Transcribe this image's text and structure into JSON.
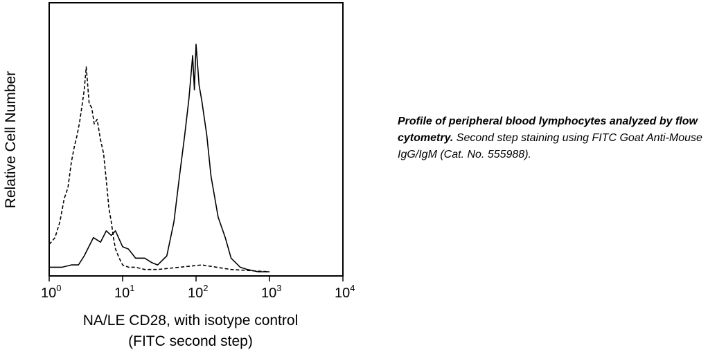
{
  "chart_data": {
    "type": "line",
    "title": "",
    "xlabel": "NA/LE CD28, with isotype control",
    "xlabel_line2": "(FITC second step)",
    "ylabel": "Relative Cell Number",
    "xscale": "log",
    "xlim": [
      1,
      10000
    ],
    "ylim": [
      0,
      100
    ],
    "grid": false,
    "xticks": [
      {
        "value": 1,
        "base": "10",
        "exp": "0"
      },
      {
        "value": 10,
        "base": "10",
        "exp": "1"
      },
      {
        "value": 100,
        "base": "10",
        "exp": "2"
      },
      {
        "value": 1000,
        "base": "10",
        "exp": "3"
      },
      {
        "value": 10000,
        "base": "10",
        "exp": "4"
      }
    ],
    "series": [
      {
        "style": "dashed",
        "x": [
          1.0,
          1.2,
          1.4,
          1.6,
          1.8,
          2.0,
          2.2,
          2.4,
          2.6,
          2.8,
          3.0,
          3.2,
          3.5,
          3.8,
          4.1,
          4.5,
          5.0,
          5.5,
          6.0,
          6.5,
          7.0,
          7.5,
          8.0,
          9.0,
          10.0,
          12.0,
          15.0,
          20.0,
          30.0,
          60.0,
          120.0,
          300.0,
          1000.0
        ],
        "y": [
          12,
          15,
          22,
          32,
          37,
          48,
          55,
          60,
          66,
          73,
          80,
          90,
          74,
          72,
          65,
          67,
          58,
          52,
          40,
          28,
          22,
          15,
          10,
          6,
          3,
          2,
          2,
          1,
          1,
          2,
          3,
          1,
          0
        ]
      },
      {
        "style": "solid",
        "x": [
          1.0,
          1.5,
          2.0,
          2.5,
          3.0,
          4.0,
          5.0,
          6.0,
          7.0,
          8.0,
          10.0,
          12.0,
          15.0,
          20.0,
          25.0,
          30.0,
          40.0,
          50.0,
          60.0,
          70.0,
          80.0,
          90.0,
          95.0,
          100.0,
          110.0,
          120.0,
          140.0,
          160.0,
          200.0,
          250.0,
          300.0,
          400.0,
          500.0,
          700.0,
          1000.0
        ],
        "y": [
          2,
          2,
          3,
          3,
          7,
          15,
          13,
          18,
          16,
          18,
          11,
          10,
          6,
          6,
          4,
          3,
          7,
          22,
          43,
          60,
          76,
          95,
          80,
          100,
          82,
          75,
          60,
          42,
          24,
          15,
          6,
          2,
          1,
          0,
          0
        ]
      }
    ]
  },
  "caption": {
    "bold": "Profile of peripheral blood lymphocytes analyzed by flow cytometry.",
    "text": " Second step staining using FITC Goat Anti-Mouse IgG/IgM (Cat. No. 555988)."
  }
}
